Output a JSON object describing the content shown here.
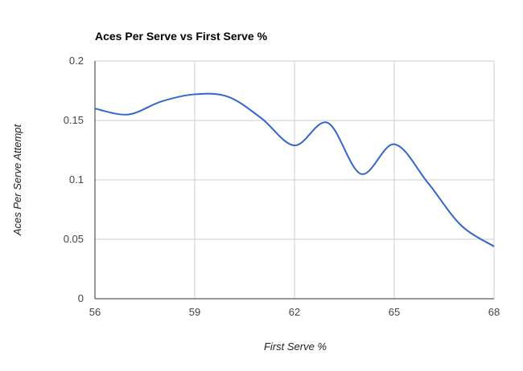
{
  "chart_data": {
    "type": "line",
    "title": "Aces Per Serve vs First Serve %",
    "xlabel": "First Serve %",
    "ylabel": "Aces Per Serve Attempt",
    "xlim": [
      56,
      68
    ],
    "ylim": [
      0,
      0.2
    ],
    "x_ticks": [
      "56",
      "59",
      "62",
      "65",
      "68"
    ],
    "y_ticks": [
      "0",
      "0.05",
      "0.1",
      "0.15",
      "0.2"
    ],
    "grid": true,
    "legend": "none",
    "series": [
      {
        "color": "#3366cc",
        "points": [
          {
            "x": 56,
            "y": 0.16
          },
          {
            "x": 57,
            "y": 0.155
          },
          {
            "x": 58,
            "y": 0.166
          },
          {
            "x": 59,
            "y": 0.172
          },
          {
            "x": 60,
            "y": 0.17
          },
          {
            "x": 61,
            "y": 0.152
          },
          {
            "x": 62,
            "y": 0.129
          },
          {
            "x": 63,
            "y": 0.148
          },
          {
            "x": 64,
            "y": 0.105
          },
          {
            "x": 65,
            "y": 0.13
          },
          {
            "x": 66,
            "y": 0.098
          },
          {
            "x": 67,
            "y": 0.062
          },
          {
            "x": 68,
            "y": 0.044
          }
        ]
      }
    ]
  }
}
